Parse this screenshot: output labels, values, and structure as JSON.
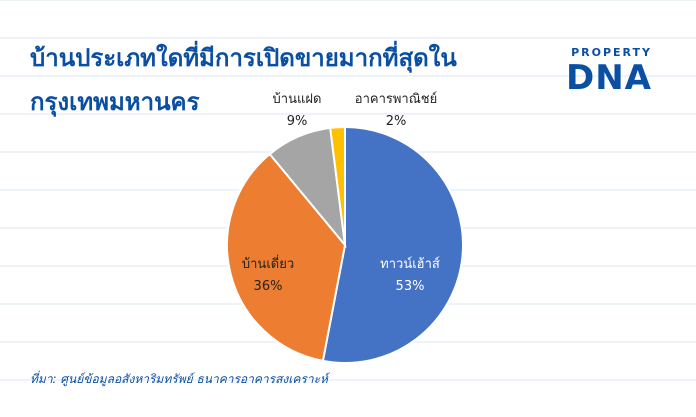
{
  "title_line1": "บ้านประเภทใดที่มีการเปิดขายมากที่สุดใน",
  "title_line2": "กรุงเทพมหานคร",
  "logo": {
    "top": "PROPERTY",
    "main": "DNA"
  },
  "source": "ที่มา: ศูนย์ข้อมูลอสังหาริมทรัพย์ ธนาคารอาคารสงเคราะห์",
  "colors": {
    "title": "#0b4fa3",
    "townhouse": "#4472c4",
    "detached": "#ed7d31",
    "twin": "#a5a5a5",
    "commercial": "#ffc000"
  },
  "chart_data": {
    "type": "pie",
    "title": "บ้านประเภทใดที่มีการเปิดขายมากที่สุดในกรุงเทพมหานคร",
    "slices": [
      {
        "label": "ทาวน์เฮ้าส์",
        "value": 53,
        "display": "53%",
        "color": "#4472c4"
      },
      {
        "label": "บ้านเดี่ยว",
        "value": 36,
        "display": "36%",
        "color": "#ed7d31"
      },
      {
        "label": "บ้านแฝด",
        "value": 9,
        "display": "9%",
        "color": "#a5a5a5"
      },
      {
        "label": "อาคารพาณิชย์",
        "value": 2,
        "display": "2%",
        "color": "#ffc000"
      }
    ]
  }
}
